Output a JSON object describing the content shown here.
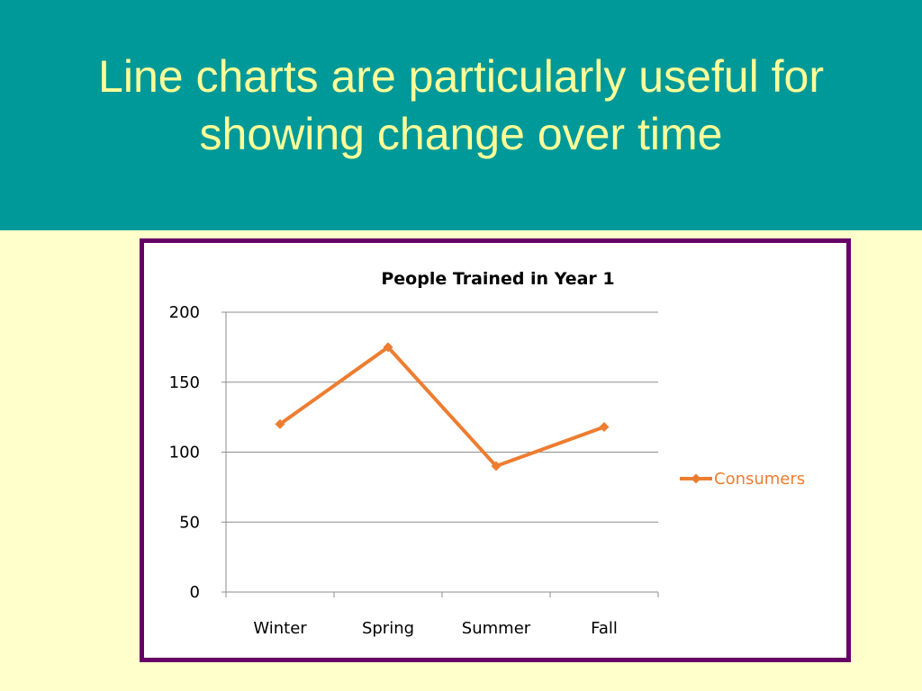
{
  "slide": {
    "title_line1": "Line charts are particularly useful for",
    "title_line2": "showing change over time"
  },
  "colors": {
    "header_bg": "#009999",
    "title_text": "#ffff99",
    "page_bg": "#ffffcc",
    "frame_border": "#660066",
    "series": "#ed7d31"
  },
  "chart_data": {
    "type": "line",
    "title": "People Trained in Year 1",
    "categories": [
      "Winter",
      "Spring",
      "Summer",
      "Fall"
    ],
    "series": [
      {
        "name": "Consumers",
        "values": [
          120,
          175,
          90,
          118
        ],
        "color": "#ed7d31",
        "marker": "diamond"
      }
    ],
    "ylim": [
      0,
      200
    ],
    "yticks": [
      0,
      50,
      100,
      150,
      200
    ],
    "grid": true,
    "legend": "right"
  }
}
